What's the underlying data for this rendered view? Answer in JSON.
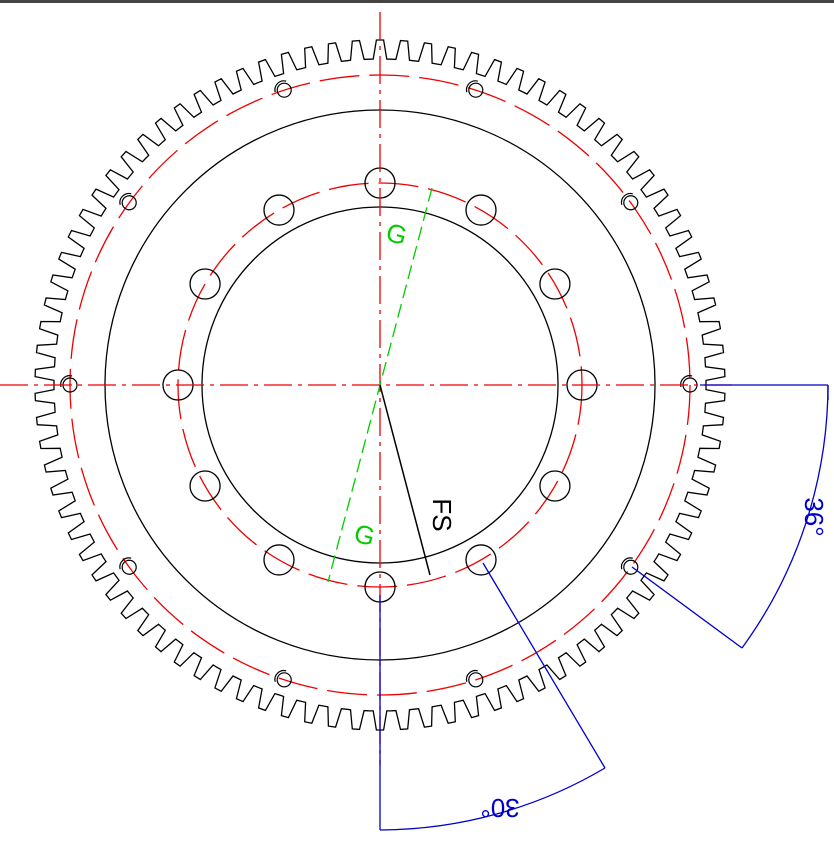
{
  "labels": {
    "g_top": "G",
    "g_bottom": "G",
    "fs": "FS",
    "angle_outer": "36°",
    "angle_inner": "30°"
  }
}
